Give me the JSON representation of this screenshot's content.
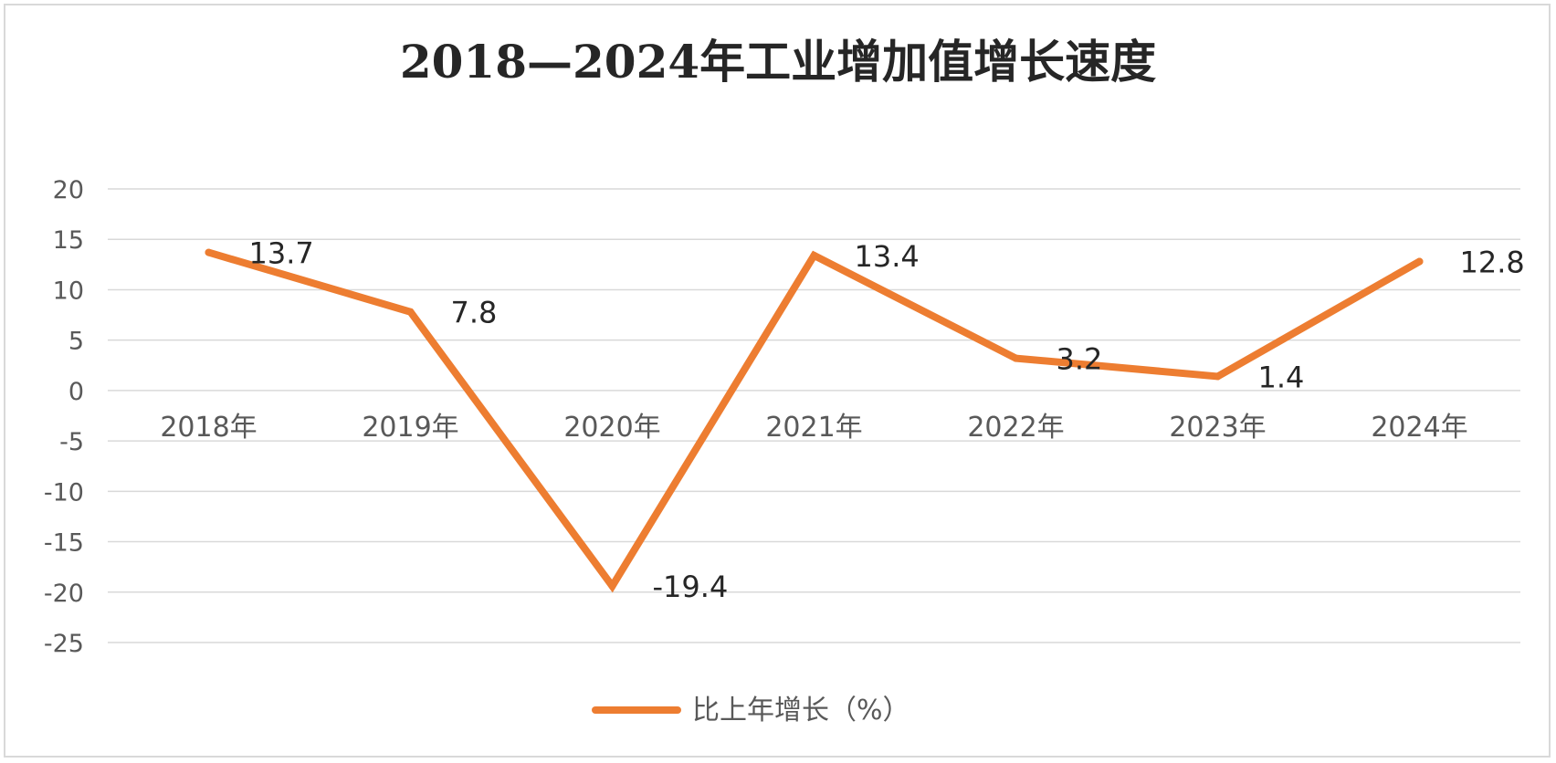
{
  "chart_data": {
    "type": "line",
    "title": "2018—2024年工业增加值增长速度",
    "categories": [
      "2018年",
      "2019年",
      "2020年",
      "2021年",
      "2022年",
      "2023年",
      "2024年"
    ],
    "series": [
      {
        "name": "比上年增长（%）",
        "values": [
          13.7,
          7.8,
          -19.4,
          13.4,
          3.2,
          1.4,
          12.8
        ],
        "color": "#ed7d31"
      }
    ],
    "data_labels": [
      "13.7",
      "7.8",
      "-19.4",
      "13.4",
      "3.2",
      "1.4",
      "12.8"
    ],
    "y_ticks": [
      "20",
      "15",
      "10",
      "5",
      "0",
      "-5",
      "-10",
      "-15",
      "-20",
      "-25"
    ],
    "ylim": [
      -25,
      20
    ],
    "grid": true,
    "legend_position": "bottom"
  }
}
